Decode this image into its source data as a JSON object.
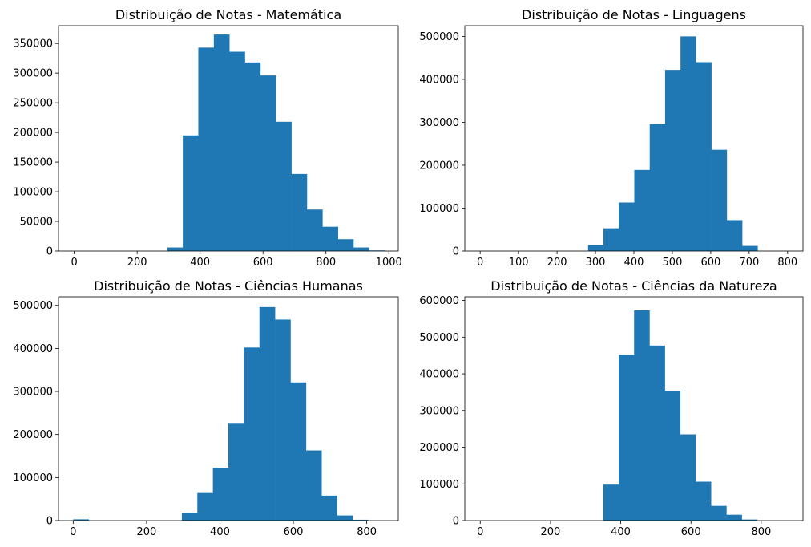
{
  "chart_data": [
    {
      "type": "bar",
      "title": "Distribuição de Notas - Matemática",
      "xlabel": "",
      "ylabel": "",
      "xlim": [
        -50,
        1030
      ],
      "ylim": [
        0,
        380000
      ],
      "xticks": [
        0,
        200,
        400,
        600,
        800,
        1000
      ],
      "xtick_labels": [
        "0",
        "200",
        "400",
        "600",
        "800",
        "1000"
      ],
      "yticks": [
        0,
        50000,
        100000,
        150000,
        200000,
        250000,
        300000,
        350000
      ],
      "ytick_labels": [
        "0",
        "50000",
        "100000",
        "150000",
        "200000",
        "250000",
        "300000",
        "350000"
      ],
      "bin_edges": [
        0,
        49.3,
        98.6,
        147.9,
        197.2,
        246.5,
        295.8,
        345.1,
        394.4,
        443.7,
        493,
        542.3,
        591.6,
        640.9,
        690.2,
        739.5,
        788.8,
        838.1,
        887.4,
        936.7,
        986
      ],
      "values": [
        0,
        0,
        0,
        0,
        0,
        0,
        6000,
        195000,
        343000,
        365000,
        336000,
        318000,
        296000,
        218000,
        130000,
        70000,
        41000,
        20000,
        6000,
        1000
      ],
      "bar_color": "#1f77b4",
      "grid": false
    },
    {
      "type": "bar",
      "title": "Distribuição de Notas - Linguagens",
      "xlabel": "",
      "ylabel": "",
      "xlim": [
        -40,
        840
      ],
      "ylim": [
        0,
        525000
      ],
      "xticks": [
        0,
        100,
        200,
        300,
        400,
        500,
        600,
        700,
        800
      ],
      "xtick_labels": [
        "0",
        "100",
        "200",
        "300",
        "400",
        "500",
        "600",
        "700",
        "800"
      ],
      "yticks": [
        0,
        100000,
        200000,
        300000,
        400000,
        500000
      ],
      "ytick_labels": [
        "0",
        "100000",
        "200000",
        "300000",
        "400000",
        "500000"
      ],
      "bin_edges": [
        0,
        40.1,
        80.2,
        120.3,
        160.4,
        200.5,
        240.6,
        280.7,
        320.8,
        360.9,
        401,
        441.1,
        481.2,
        521.3,
        561.4,
        601.5,
        641.6,
        681.7,
        721.8,
        761.9,
        802
      ],
      "values": [
        0,
        0,
        0,
        0,
        0,
        0,
        0,
        14000,
        53000,
        113000,
        189000,
        296000,
        422000,
        500000,
        440000,
        236000,
        72000,
        12000,
        0,
        0
      ],
      "bar_color": "#1f77b4",
      "grid": false
    },
    {
      "type": "bar",
      "title": "Distribuição de Notas - Ciências Humanas",
      "xlabel": "",
      "ylabel": "",
      "xlim": [
        -40,
        886
      ],
      "ylim": [
        0,
        520000
      ],
      "xticks": [
        0,
        200,
        400,
        600,
        800
      ],
      "xtick_labels": [
        "0",
        "200",
        "400",
        "600",
        "800"
      ],
      "yticks": [
        0,
        100000,
        200000,
        300000,
        400000,
        500000
      ],
      "ytick_labels": [
        "0",
        "100000",
        "200000",
        "300000",
        "400000",
        "500000"
      ],
      "bin_edges": [
        0,
        42.3,
        84.6,
        126.9,
        169.2,
        211.5,
        253.8,
        296.1,
        338.4,
        380.7,
        423,
        465.3,
        507.6,
        549.9,
        592.2,
        634.5,
        676.8,
        719.1,
        761.4,
        803.7,
        846
      ],
      "values": [
        3000,
        0,
        0,
        0,
        0,
        0,
        0,
        18000,
        64000,
        123000,
        225000,
        402000,
        496000,
        467000,
        321000,
        163000,
        58000,
        12000,
        2000,
        0
      ],
      "bar_color": "#1f77b4",
      "grid": false
    },
    {
      "type": "bar",
      "title": "Distribuição de Notas - Ciências da Natureza",
      "xlabel": "",
      "ylabel": "",
      "xlim": [
        -44,
        919
      ],
      "ylim": [
        0,
        610000
      ],
      "xticks": [
        0,
        200,
        400,
        600,
        800
      ],
      "xtick_labels": [
        "0",
        "200",
        "400",
        "600",
        "800"
      ],
      "yticks": [
        0,
        100000,
        200000,
        300000,
        400000,
        500000,
        600000
      ],
      "ytick_labels": [
        "0",
        "100000",
        "200000",
        "300000",
        "400000",
        "500000",
        "600000"
      ],
      "bin_edges": [
        0,
        43.8,
        87.6,
        131.4,
        175.2,
        219,
        262.8,
        306.6,
        350.4,
        394.2,
        438,
        481.8,
        525.6,
        569.4,
        613.2,
        657,
        700.8,
        744.6,
        788.4,
        832.2,
        876
      ],
      "values": [
        0,
        0,
        0,
        0,
        0,
        0,
        0,
        0,
        98000,
        452000,
        573000,
        477000,
        354000,
        235000,
        106000,
        40000,
        16000,
        3000,
        0,
        0
      ],
      "bar_color": "#1f77b4",
      "grid": false
    }
  ]
}
